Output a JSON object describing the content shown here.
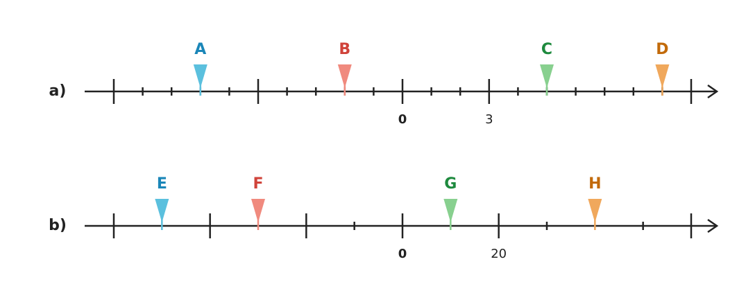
{
  "number_lines": [
    {
      "label": "a)",
      "xlim": [
        -10,
        10
      ],
      "major_ticks": [
        -10,
        -5,
        0,
        3,
        10
      ],
      "minor_ticks": [
        -9,
        -8,
        -7,
        -6,
        -4,
        -3,
        -2,
        -1,
        1,
        2,
        4,
        5,
        6,
        7,
        8,
        9
      ],
      "tick_labels": [
        0,
        3
      ],
      "markers": [
        {
          "label": "A",
          "value": -7,
          "color": "#5bc0de",
          "text_color": "#1a86b8"
        },
        {
          "label": "B",
          "value": -2,
          "color": "#f08a7e",
          "text_color": "#d0433a"
        },
        {
          "label": "C",
          "value": 5,
          "color": "#88d08f",
          "text_color": "#1e8a3e"
        },
        {
          "label": "D",
          "value": 9,
          "color": "#f0a85c",
          "text_color": "#c26a0a"
        }
      ]
    },
    {
      "label": "b)",
      "xlim": [
        -60,
        60
      ],
      "major_ticks": [
        -60,
        -40,
        -20,
        0,
        20,
        60
      ],
      "minor_ticks": [
        -10,
        30,
        50
      ],
      "tick_labels": [
        0,
        20
      ],
      "markers": [
        {
          "label": "E",
          "value": -50,
          "color": "#5bc0de",
          "text_color": "#1a86b8"
        },
        {
          "label": "F",
          "value": -30,
          "color": "#f08a7e",
          "text_color": "#d0433a"
        },
        {
          "label": "G",
          "value": 10,
          "color": "#88d08f",
          "text_color": "#1e8a3e"
        },
        {
          "label": "H",
          "value": 40,
          "color": "#f0a85c",
          "text_color": "#c26a0a"
        }
      ]
    }
  ]
}
